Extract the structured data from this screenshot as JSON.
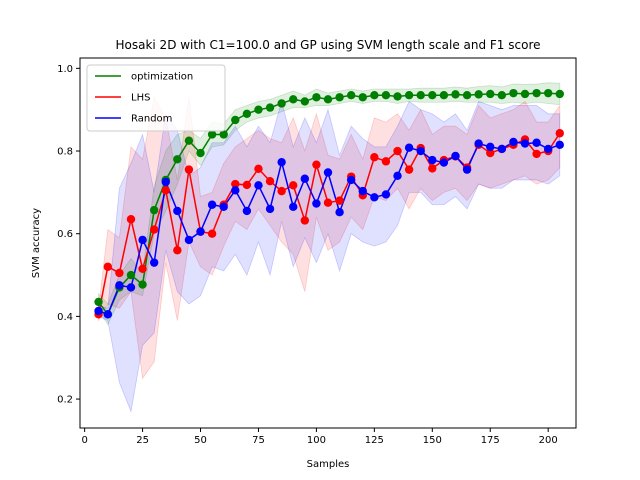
{
  "chart_data": {
    "type": "line",
    "title": "Hosaki 2D with C1=100.0 and GP using SVM length scale and F1 score",
    "xlabel": "Samples",
    "ylabel": "SVM accuracy",
    "xlim": [
      -2,
      212
    ],
    "ylim": [
      0.13,
      1.025
    ],
    "xticks": [
      0,
      25,
      50,
      75,
      100,
      125,
      150,
      175,
      200
    ],
    "yticks": [
      0.2,
      0.4,
      0.6,
      0.8,
      1.0
    ],
    "grid": false,
    "legend_position": "top-left",
    "x": [
      6,
      10,
      15,
      20,
      25,
      30,
      35,
      40,
      45,
      50,
      55,
      60,
      65,
      70,
      75,
      80,
      85,
      90,
      95,
      100,
      105,
      110,
      115,
      120,
      125,
      130,
      135,
      140,
      145,
      150,
      155,
      160,
      165,
      170,
      175,
      180,
      185,
      190,
      195,
      200,
      205
    ],
    "series": [
      {
        "name": "optimization",
        "color": "#008000",
        "values": [
          0.435,
          0.405,
          0.47,
          0.5,
          0.477,
          0.657,
          0.73,
          0.78,
          0.825,
          0.795,
          0.84,
          0.84,
          0.875,
          0.89,
          0.9,
          0.905,
          0.915,
          0.925,
          0.92,
          0.93,
          0.925,
          0.93,
          0.935,
          0.93,
          0.935,
          0.935,
          0.932,
          0.935,
          0.935,
          0.935,
          0.935,
          0.937,
          0.935,
          0.937,
          0.938,
          0.935,
          0.94,
          0.938,
          0.94,
          0.94,
          0.938
        ],
        "band_lower": [
          0.415,
          0.38,
          0.44,
          0.46,
          0.45,
          0.6,
          0.655,
          0.72,
          0.8,
          0.765,
          0.81,
          0.815,
          0.85,
          0.87,
          0.88,
          0.885,
          0.895,
          0.905,
          0.905,
          0.91,
          0.91,
          0.915,
          0.92,
          0.915,
          0.92,
          0.92,
          0.915,
          0.92,
          0.918,
          0.918,
          0.918,
          0.92,
          0.918,
          0.918,
          0.918,
          0.915,
          0.918,
          0.915,
          0.918,
          0.915,
          0.912
        ],
        "band_upper": [
          0.455,
          0.43,
          0.5,
          0.54,
          0.505,
          0.715,
          0.8,
          0.84,
          0.85,
          0.83,
          0.87,
          0.865,
          0.9,
          0.91,
          0.92,
          0.925,
          0.935,
          0.945,
          0.935,
          0.95,
          0.94,
          0.945,
          0.95,
          0.945,
          0.95,
          0.95,
          0.95,
          0.95,
          0.952,
          0.952,
          0.952,
          0.955,
          0.952,
          0.956,
          0.958,
          0.955,
          0.962,
          0.961,
          0.962,
          0.965,
          0.964
        ]
      },
      {
        "name": "LHS",
        "color": "#ff0000",
        "values": [
          0.405,
          0.52,
          0.505,
          0.635,
          0.515,
          0.61,
          0.705,
          0.56,
          0.755,
          0.605,
          0.6,
          0.67,
          0.72,
          0.718,
          0.757,
          0.727,
          0.703,
          0.717,
          0.632,
          0.767,
          0.675,
          0.68,
          0.738,
          0.693,
          0.785,
          0.775,
          0.8,
          0.755,
          0.807,
          0.758,
          0.778,
          0.787,
          0.76,
          0.815,
          0.795,
          0.805,
          0.815,
          0.828,
          0.793,
          0.8,
          0.843
        ],
        "band_lower": [
          0.39,
          0.43,
          0.42,
          0.46,
          0.25,
          0.29,
          0.53,
          0.39,
          0.58,
          0.52,
          0.5,
          0.57,
          0.63,
          0.61,
          0.66,
          0.62,
          0.58,
          0.55,
          0.46,
          0.64,
          0.56,
          0.58,
          0.64,
          0.61,
          0.69,
          0.68,
          0.71,
          0.66,
          0.71,
          0.68,
          0.7,
          0.71,
          0.68,
          0.72,
          0.71,
          0.72,
          0.73,
          0.74,
          0.72,
          0.73,
          0.76
        ],
        "band_upper": [
          0.42,
          0.61,
          0.59,
          0.81,
          0.78,
          0.93,
          0.88,
          0.73,
          0.93,
          0.69,
          0.7,
          0.77,
          0.81,
          0.83,
          0.85,
          0.83,
          0.82,
          0.88,
          0.8,
          0.89,
          0.79,
          0.78,
          0.84,
          0.78,
          0.88,
          0.87,
          0.89,
          0.85,
          0.9,
          0.84,
          0.86,
          0.86,
          0.84,
          0.91,
          0.88,
          0.89,
          0.9,
          0.92,
          0.87,
          0.87,
          0.91
        ]
      },
      {
        "name": "Random",
        "color": "#0000ff",
        "values": [
          0.413,
          0.405,
          0.475,
          0.47,
          0.585,
          0.53,
          0.725,
          0.655,
          0.585,
          0.605,
          0.67,
          0.665,
          0.705,
          0.655,
          0.717,
          0.66,
          0.773,
          0.665,
          0.733,
          0.673,
          0.748,
          0.652,
          0.73,
          0.703,
          0.688,
          0.695,
          0.74,
          0.808,
          0.8,
          0.778,
          0.772,
          0.788,
          0.755,
          0.818,
          0.81,
          0.805,
          0.822,
          0.818,
          0.82,
          0.805,
          0.815
        ],
        "band_lower": [
          0.4,
          0.39,
          0.24,
          0.17,
          0.33,
          0.36,
          0.56,
          0.46,
          0.43,
          0.45,
          0.52,
          0.51,
          0.55,
          0.5,
          0.58,
          0.5,
          0.63,
          0.52,
          0.59,
          0.53,
          0.6,
          0.51,
          0.6,
          0.58,
          0.57,
          0.58,
          0.62,
          0.7,
          0.7,
          0.67,
          0.67,
          0.69,
          0.66,
          0.72,
          0.71,
          0.71,
          0.73,
          0.73,
          0.73,
          0.72,
          0.74
        ],
        "band_upper": [
          0.425,
          0.42,
          0.71,
          0.77,
          0.84,
          0.7,
          0.89,
          0.85,
          0.74,
          0.76,
          0.82,
          0.82,
          0.86,
          0.81,
          0.86,
          0.82,
          0.92,
          0.81,
          0.88,
          0.82,
          0.9,
          0.79,
          0.86,
          0.83,
          0.81,
          0.81,
          0.86,
          0.92,
          0.9,
          0.89,
          0.87,
          0.89,
          0.85,
          0.92,
          0.91,
          0.9,
          0.91,
          0.91,
          0.91,
          0.89,
          0.89
        ]
      }
    ]
  }
}
